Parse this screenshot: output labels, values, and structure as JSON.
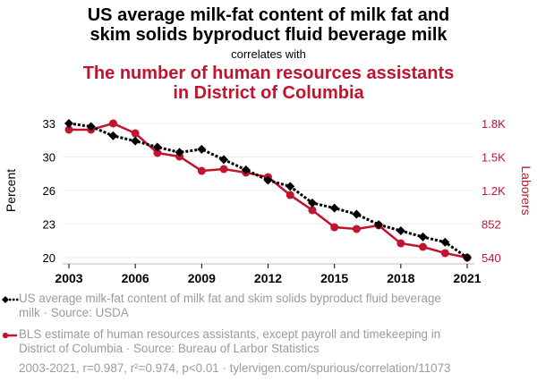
{
  "header": {
    "title_line1": "US average milk-fat content of milk fat and",
    "title_line2": "skim solids byproduct fluid beverage milk",
    "correlates": "correlates with",
    "subtitle_line1": "The number of human resources assistants",
    "subtitle_line2": "in District of Columbia"
  },
  "colors": {
    "series1": "#000000",
    "series2": "#c0142f",
    "muted": "#9b9b9b",
    "grid": "#eeeeee"
  },
  "legend": {
    "series1_line1": "US average milk-fat content of milk fat and skim solids byproduct fluid beverage",
    "series1_line2": "milk · Source: USDA",
    "series2_line1": "BLS estimate of human resources assistants, except payroll and timekeeping in",
    "series2_line2": "District of Columbia · Source: Bureau of Larbor Statistics"
  },
  "footer": "2003-2021, r=0.987, r²=0.974, p<0.01 · tylervigen.com/spurious/correlation/11073",
  "chart_data": {
    "type": "line",
    "x": [
      2003,
      2004,
      2005,
      2006,
      2007,
      2008,
      2009,
      2010,
      2011,
      2012,
      2013,
      2014,
      2015,
      2016,
      2017,
      2018,
      2019,
      2020,
      2021
    ],
    "xticks": [
      "2003",
      "2006",
      "2009",
      "2012",
      "2015",
      "2018",
      "2021"
    ],
    "xlim": [
      2003,
      2021
    ],
    "ylabel_left": "Percent",
    "ylabel_right": "Laborers",
    "ylim_left": [
      20,
      33
    ],
    "ylim_right": [
      540,
      1790
    ],
    "yticks_left": [
      "20",
      "23",
      "26",
      "30",
      "33"
    ],
    "yticks_right": [
      "540",
      "852",
      "1.2K",
      "1.5K",
      "1.8K"
    ],
    "grid": true,
    "legend_position": "bottom",
    "series": [
      {
        "name": "US average milk-fat content of milk fat and skim solids byproduct fluid beverage milk",
        "axis": "left",
        "style": "dotted-diamond",
        "values": [
          33.0,
          32.7,
          31.8,
          31.3,
          30.7,
          30.2,
          30.5,
          29.5,
          28.5,
          27.5,
          26.9,
          25.3,
          24.8,
          24.2,
          23.2,
          22.6,
          22.0,
          21.5,
          20.0
        ]
      },
      {
        "name": "BLS estimate of human resources assistants, except payroll and timekeeping in District of Columbia",
        "axis": "right",
        "style": "solid-circle",
        "values": [
          1732,
          1732,
          1790,
          1698,
          1515,
          1482,
          1348,
          1365,
          1332,
          1290,
          1123,
          982,
          823,
          807,
          840,
          673,
          640,
          582,
          540
        ]
      }
    ]
  }
}
